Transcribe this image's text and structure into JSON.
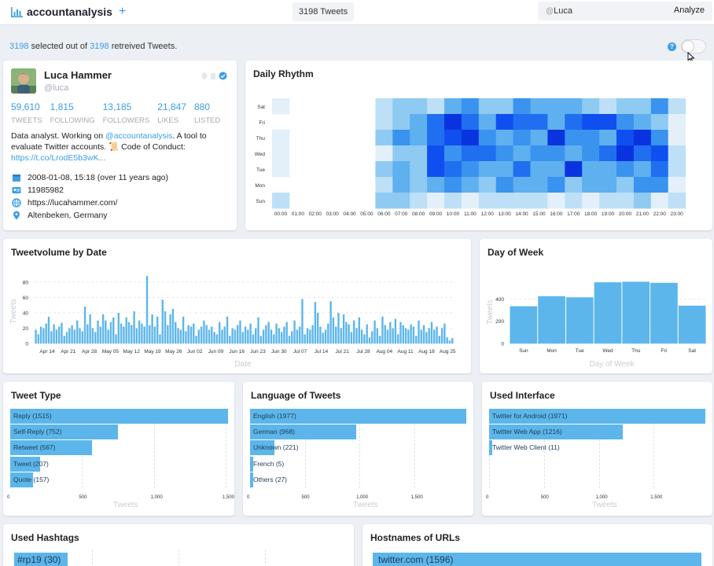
{
  "app": {
    "name": "accountanalysis",
    "plus": "+",
    "tweet_count": "3198 Tweets",
    "search_at": "@",
    "search_value": "Luca",
    "analyze_label": "Analyze"
  },
  "selection": {
    "selected": "3198",
    "mid": " selected out of ",
    "retrieved": "3198",
    "tail": " retreived Tweets."
  },
  "help": "?",
  "profile": {
    "name": "Luca Hammer",
    "handle": "@luca",
    "stats": [
      {
        "value": "59,610",
        "label": "TWEETS"
      },
      {
        "value": "1,815",
        "label": "FOLLOWING"
      },
      {
        "value": "13,185",
        "label": "FOLLOWERS"
      },
      {
        "value": "21,847",
        "label": "LIKES"
      },
      {
        "value": "880",
        "label": "LISTED"
      }
    ],
    "bio_pre": "Data analyst. Working on ",
    "bio_link": "@accountanalysis",
    "bio_mid": ". A tool to evaluate Twitter accounts. 📜 Code of Conduct: ",
    "bio_url": "https://t.co/LrodE5b3wK...",
    "joined": "2008-01-08, 15:18 (over 11 years ago)",
    "id": "11985982",
    "website": "https://lucahammer.com/",
    "location": "Altenbeken, Germany"
  },
  "daily_rhythm": {
    "title": "Daily Rhythm",
    "days": [
      "Sat",
      "Fri",
      "Thu",
      "Wed",
      "Tue",
      "Mon",
      "Sun"
    ],
    "hours": [
      "00:00",
      "01:00",
      "02:00",
      "03:00",
      "04:00",
      "05:00",
      "06:00",
      "07:00",
      "08:00",
      "09:00",
      "10:00",
      "11:00",
      "12:00",
      "13:00",
      "14:00",
      "15:00",
      "16:00",
      "17:00",
      "18:00",
      "19:00",
      "20:00",
      "21:00",
      "22:00",
      "23:00"
    ]
  },
  "tweetvolume": {
    "title": "Tweetvolume by Date",
    "xlabel": "Date",
    "ylabel": "Tweets",
    "yticks": [
      "0",
      "20",
      "40",
      "60",
      "80"
    ],
    "xticks": [
      "Apr 14",
      "Apr 21",
      "Apr 28",
      "May 05",
      "May 12",
      "May 19",
      "May 26",
      "Jun 02",
      "Jun 09",
      "Jun 16",
      "Jun 23",
      "Jun 30",
      "Jul 07",
      "Jul 14",
      "Jul 21",
      "Jul 28",
      "Aug 04",
      "Aug 11",
      "Aug 18",
      "Aug 25"
    ]
  },
  "day_of_week": {
    "title": "Day of Week",
    "xlabel": "Day of Week",
    "ylabel": "Tweets",
    "yticks": [
      "0",
      "200",
      "400"
    ]
  },
  "tweet_type": {
    "title": "Tweet Type",
    "xlabel": "Tweets",
    "ticks": [
      "0",
      "500",
      "1,000",
      "1,500"
    ],
    "bars": [
      {
        "label": "Reply (1515)",
        "value": 1515
      },
      {
        "label": "Self-Reply (752)",
        "value": 752
      },
      {
        "label": "Retweet (567)",
        "value": 567
      },
      {
        "label": "Tweet (207)",
        "value": 207
      },
      {
        "label": "Quote (157)",
        "value": 157
      }
    ]
  },
  "language": {
    "title": "Language of Tweets",
    "xlabel": "Tweets",
    "ticks": [
      "0",
      "500",
      "1,000",
      "1,500"
    ],
    "bars": [
      {
        "label": "English (1977)",
        "value": 1977
      },
      {
        "label": "German (968)",
        "value": 968
      },
      {
        "label": "Unknown (221)",
        "value": 221
      },
      {
        "label": "French (5)",
        "value": 5
      },
      {
        "label": "Others (27)",
        "value": 27
      }
    ]
  },
  "interface": {
    "title": "Used Interface",
    "xlabel": "Tweets",
    "ticks": [
      "0",
      "500",
      "1,000",
      "1,500"
    ],
    "bars": [
      {
        "label": "Twitter for Android (1971)",
        "value": 1971
      },
      {
        "label": "Twitter Web App (1216)",
        "value": 1216
      },
      {
        "label": "Twitter Web Client (11)",
        "value": 11
      }
    ]
  },
  "hashtags": {
    "title": "Used Hashtags",
    "first": "#rp19 (30)"
  },
  "hostnames": {
    "title": "Hostnames of URLs",
    "first": "twitter.com (1596)"
  },
  "chart_data": [
    {
      "type": "heatmap",
      "title": "Daily Rhythm",
      "y": [
        "Sat",
        "Fri",
        "Thu",
        "Wed",
        "Tue",
        "Mon",
        "Sun"
      ],
      "x": [
        "00:00",
        "01:00",
        "02:00",
        "03:00",
        "04:00",
        "05:00",
        "06:00",
        "07:00",
        "08:00",
        "09:00",
        "10:00",
        "11:00",
        "12:00",
        "13:00",
        "14:00",
        "15:00",
        "16:00",
        "17:00",
        "18:00",
        "19:00",
        "20:00",
        "21:00",
        "22:00",
        "23:00"
      ],
      "z": [
        [
          1,
          0,
          0,
          0,
          0,
          0,
          2,
          3,
          3,
          2,
          4,
          5,
          3,
          3,
          5,
          4,
          4,
          4,
          3,
          2,
          3,
          3,
          5,
          2
        ],
        [
          0,
          0,
          0,
          0,
          0,
          0,
          2,
          3,
          4,
          6,
          8,
          6,
          4,
          7,
          6,
          6,
          4,
          6,
          7,
          7,
          5,
          4,
          3,
          1
        ],
        [
          1,
          0,
          0,
          0,
          0,
          0,
          3,
          5,
          4,
          6,
          7,
          8,
          5,
          4,
          5,
          4,
          8,
          5,
          5,
          4,
          7,
          8,
          5,
          1
        ],
        [
          1,
          0,
          0,
          0,
          0,
          0,
          1,
          3,
          3,
          7,
          5,
          6,
          6,
          5,
          4,
          5,
          5,
          4,
          5,
          6,
          8,
          6,
          7,
          2
        ],
        [
          1,
          0,
          0,
          0,
          0,
          0,
          3,
          4,
          3,
          7,
          6,
          5,
          4,
          4,
          6,
          4,
          4,
          8,
          4,
          4,
          5,
          4,
          6,
          2
        ],
        [
          0,
          0,
          0,
          0,
          0,
          0,
          2,
          4,
          3,
          4,
          5,
          4,
          3,
          5,
          4,
          4,
          5,
          3,
          4,
          4,
          3,
          5,
          5,
          1
        ],
        [
          2,
          0,
          0,
          0,
          0,
          0,
          3,
          3,
          2,
          1,
          2,
          1,
          2,
          2,
          2,
          2,
          1,
          2,
          1,
          2,
          2,
          3,
          1,
          2
        ]
      ]
    },
    {
      "type": "bar",
      "title": "Tweetvolume by Date",
      "xlabel": "Date",
      "ylabel": "Tweets",
      "ylim": [
        0,
        90
      ],
      "values": [
        18,
        12,
        22,
        20,
        26,
        35,
        16,
        25,
        18,
        22,
        27,
        10,
        15,
        20,
        24,
        18,
        30,
        20,
        16,
        48,
        25,
        38,
        20,
        15,
        30,
        22,
        38,
        30,
        18,
        28,
        34,
        12,
        40,
        26,
        22,
        34,
        28,
        24,
        42,
        20,
        30,
        26,
        22,
        88,
        24,
        38,
        22,
        35,
        12,
        57,
        42,
        24,
        38,
        45,
        28,
        20,
        18,
        35,
        16,
        24,
        22,
        26,
        10,
        18,
        22,
        30,
        24,
        18,
        22,
        15,
        12,
        28,
        18,
        22,
        35,
        10,
        20,
        18,
        24,
        30,
        15,
        22,
        18,
        26,
        12,
        20,
        34,
        10,
        18,
        24,
        28,
        18,
        12,
        26,
        20,
        15,
        22,
        28,
        10,
        16,
        30,
        18,
        22,
        58,
        12,
        20,
        18,
        24,
        54,
        40,
        22,
        14,
        18,
        26,
        55,
        34,
        22,
        40,
        20,
        38,
        28,
        25,
        15,
        30,
        20,
        34,
        18,
        12,
        25,
        8,
        16,
        30,
        20,
        10,
        35,
        24,
        18,
        28,
        20,
        32,
        12,
        28,
        24,
        20,
        18,
        25,
        22,
        10,
        30,
        18,
        24,
        15,
        20,
        28,
        18,
        22,
        10,
        20,
        26,
        8,
        4,
        7
      ]
    },
    {
      "type": "bar",
      "title": "Day of Week",
      "xlabel": "Day of Week",
      "ylabel": "Tweets",
      "ylim": [
        0,
        600
      ],
      "categories": [
        "Sun",
        "Mon",
        "Tue",
        "Wed",
        "Thu",
        "Fri",
        "Sat"
      ],
      "values": [
        335,
        425,
        415,
        550,
        555,
        545,
        340
      ]
    },
    {
      "type": "bar",
      "title": "Tweet Type",
      "xlabel": "Tweets",
      "categories": [
        "Reply",
        "Self-Reply",
        "Retweet",
        "Tweet",
        "Quote"
      ],
      "values": [
        1515,
        752,
        567,
        207,
        157
      ]
    },
    {
      "type": "bar",
      "title": "Language of Tweets",
      "xlabel": "Tweets",
      "categories": [
        "English",
        "German",
        "Unknown",
        "French",
        "Others"
      ],
      "values": [
        1977,
        968,
        221,
        5,
        27
      ]
    },
    {
      "type": "bar",
      "title": "Used Interface",
      "xlabel": "Tweets",
      "categories": [
        "Twitter for Android",
        "Twitter Web App",
        "Twitter Web Client"
      ],
      "values": [
        1971,
        1216,
        11
      ]
    }
  ]
}
